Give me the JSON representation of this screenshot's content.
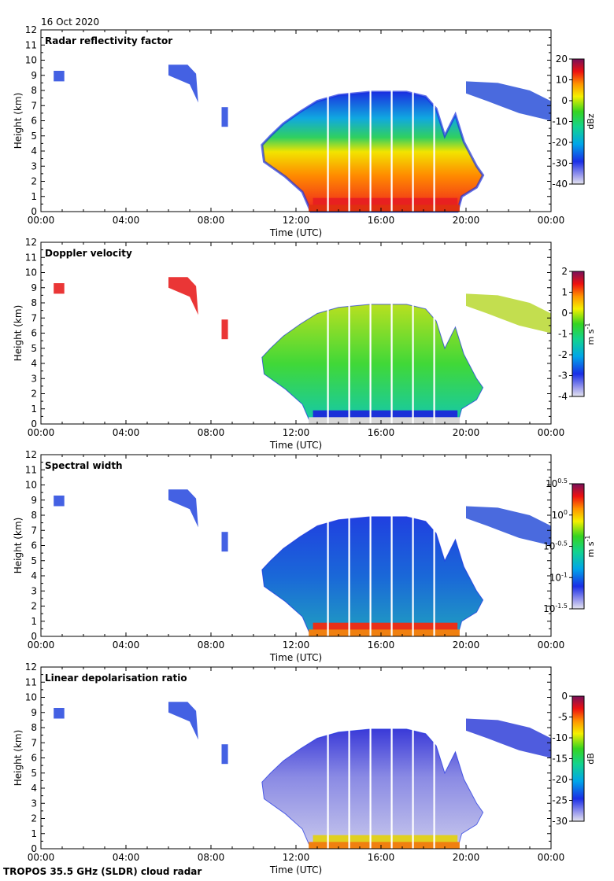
{
  "date_label": "16 Oct 2020",
  "footer": "TROPOS 35.5 GHz (SLDR) cloud radar",
  "chart_data": [
    {
      "type": "heatmap",
      "title": "Radar reflectivity factor",
      "xlabel": "Time (UTC)",
      "ylabel": "Height (km)",
      "xlim": [
        0,
        24
      ],
      "ylim": [
        0,
        12
      ],
      "xticks": [
        "00:00",
        "04:00",
        "08:00",
        "12:00",
        "16:00",
        "20:00",
        "00:00"
      ],
      "yticks": [
        "0",
        "1",
        "2",
        "3",
        "4",
        "5",
        "6",
        "7",
        "8",
        "9",
        "10",
        "11",
        "12"
      ],
      "colorbar": {
        "label": "dBz",
        "ticks": [
          "20",
          "10",
          "0",
          "-10",
          "-20",
          "-30",
          "-40"
        ],
        "min": -40,
        "max": 20
      }
    },
    {
      "type": "heatmap",
      "title": "Doppler velocity",
      "xlabel": "Time (UTC)",
      "ylabel": "Height (km)",
      "xlim": [
        0,
        24
      ],
      "ylim": [
        0,
        12
      ],
      "xticks": [
        "00:00",
        "04:00",
        "08:00",
        "12:00",
        "16:00",
        "20:00",
        "00:00"
      ],
      "yticks": [
        "0",
        "1",
        "2",
        "3",
        "4",
        "5",
        "6",
        "7",
        "8",
        "9",
        "10",
        "11",
        "12"
      ],
      "colorbar": {
        "label": "m s",
        "label_sup": "-1",
        "ticks": [
          "2",
          "1",
          "0",
          "-1",
          "-2",
          "-3",
          "-4"
        ],
        "min": -4,
        "max": 2
      }
    },
    {
      "type": "heatmap",
      "title": "Spectral width",
      "xlabel": "Time (UTC)",
      "ylabel": "Height (km)",
      "xlim": [
        0,
        24
      ],
      "ylim": [
        0,
        12
      ],
      "xticks": [
        "00:00",
        "04:00",
        "08:00",
        "12:00",
        "16:00",
        "20:00",
        "00:00"
      ],
      "yticks": [
        "0",
        "1",
        "2",
        "3",
        "4",
        "5",
        "6",
        "7",
        "8",
        "9",
        "10",
        "11",
        "12"
      ],
      "colorbar": {
        "label": "m s",
        "label_sup": "-1",
        "ticks": [
          "10^0.5",
          "10^0",
          "10^-0.5",
          "10^-1",
          "10^-1.5"
        ],
        "log_min": -1.5,
        "log_max": 0.5
      }
    },
    {
      "type": "heatmap",
      "title": "Linear depolarisation ratio",
      "xlabel": "Time (UTC)",
      "ylabel": "Height (km)",
      "xlim": [
        0,
        24
      ],
      "ylim": [
        0,
        12
      ],
      "xticks": [
        "00:00",
        "04:00",
        "08:00",
        "12:00",
        "16:00",
        "20:00",
        "00:00"
      ],
      "yticks": [
        "0",
        "1",
        "2",
        "3",
        "4",
        "5",
        "6",
        "7",
        "8",
        "9",
        "10",
        "11",
        "12"
      ],
      "colorbar": {
        "label": "dB",
        "ticks": [
          "0",
          "-5",
          "-10",
          "-15",
          "-20",
          "-25",
          "-30"
        ],
        "min": -30,
        "max": 0
      }
    }
  ]
}
